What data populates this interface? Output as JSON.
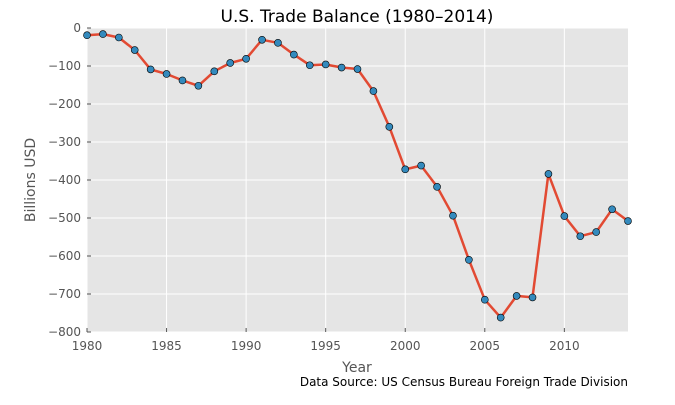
{
  "chart_data": {
    "type": "line",
    "title": "U.S. Trade Balance (1980–2014)",
    "xlabel": "Year",
    "ylabel": "Billions USD",
    "source_note": "Data Source: US Census Bureau Foreign Trade Division",
    "xlim": [
      1980,
      2014
    ],
    "ylim": [
      -800,
      0
    ],
    "x_ticks": [
      1980,
      1985,
      1990,
      1995,
      2000,
      2005,
      2010
    ],
    "y_ticks": [
      0,
      -100,
      -200,
      -300,
      -400,
      -500,
      -600,
      -700,
      -800
    ],
    "x_tick_labels": [
      "1980",
      "1985",
      "1990",
      "1995",
      "2000",
      "2005",
      "2010"
    ],
    "y_tick_labels": [
      "0",
      "−100",
      "−200",
      "−300",
      "−400",
      "−500",
      "−600",
      "−700",
      "−800"
    ],
    "grid": true,
    "series": [
      {
        "x": [
          1980,
          1981,
          1982,
          1983,
          1984,
          1985,
          1986,
          1987,
          1988,
          1989,
          1990,
          1991,
          1992,
          1993,
          1994,
          1995,
          1996,
          1997,
          1998,
          1999,
          2000,
          2001,
          2002,
          2003,
          2004,
          2005,
          2006,
          2007,
          2008,
          2009,
          2010,
          2011,
          2012,
          2013,
          2014
        ],
        "values": [
          -19,
          -16,
          -25,
          -58,
          -109,
          -121,
          -138,
          -152,
          -114,
          -92,
          -81,
          -31,
          -39,
          -70,
          -98,
          -96,
          -104,
          -108,
          -166,
          -260,
          -372,
          -362,
          -418,
          -494,
          -610,
          -715,
          -762,
          -705,
          -709,
          -384,
          -495,
          -548,
          -537,
          -477,
          -508
        ],
        "line_color": "#e24a33",
        "marker_color": "#348abd"
      }
    ],
    "colors": {
      "plot_background": "#e5e5e5",
      "grid": "#ffffff"
    }
  }
}
